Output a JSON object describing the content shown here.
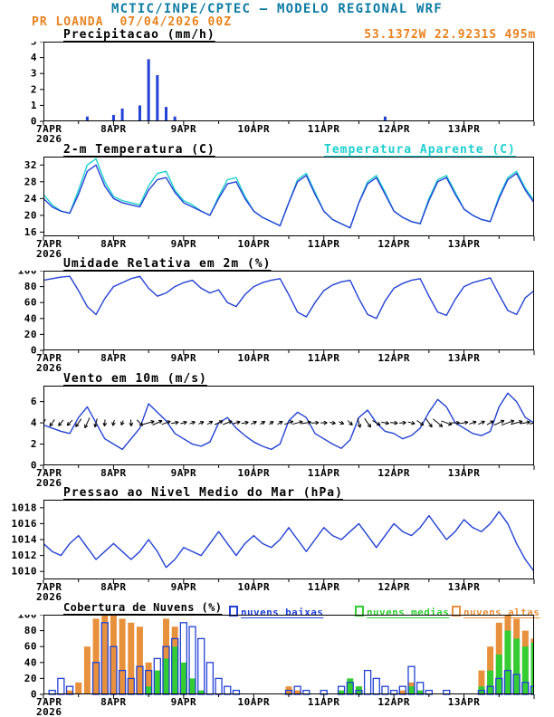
{
  "header": {
    "title": "MCTIC/INPE/CPTEC – MODELO REGIONAL WRF",
    "station": "PR LOANDA",
    "run_datetime": "07/04/2026 00Z",
    "location": "53.1372W 22.9231S 495m"
  },
  "colors": {
    "header_title": "#0e7ca3",
    "station_text": "#e8821e",
    "series_blue": "#2341d5",
    "apparent_cyan": "#1ecfcf",
    "clouds_low": "#2341d5",
    "clouds_mid": "#33cc33",
    "clouds_high": "#e8913d",
    "axis": "#000000"
  },
  "x_axis": {
    "day_labels": [
      "7APR",
      "8APR",
      "9APR",
      "10APR",
      "11APR",
      "12APR",
      "13APR"
    ],
    "year": "2026",
    "hours_total": 168,
    "step_hours": 3
  },
  "chart_data": [
    {
      "name": "precipitacao",
      "type": "bar",
      "title": "Precipitacao (mm/h)",
      "ylim": [
        0,
        5
      ],
      "yticks": [
        0,
        1,
        2,
        3,
        4,
        5
      ],
      "bar_color": "#2341d5",
      "values": [
        0,
        0,
        0,
        0,
        0,
        0.3,
        0,
        0,
        0.4,
        0.8,
        0,
        1.0,
        3.9,
        2.9,
        0.9,
        0.3,
        0,
        0,
        0,
        0,
        0,
        0,
        0,
        0,
        0,
        0,
        0,
        0,
        0,
        0,
        0,
        0,
        0,
        0,
        0,
        0,
        0,
        0,
        0,
        0.3,
        0,
        0,
        0,
        0,
        0,
        0,
        0,
        0,
        0,
        0,
        0,
        0,
        0,
        0,
        0,
        0,
        0
      ]
    },
    {
      "name": "temperatura",
      "type": "line",
      "title": "2-m Temperatura (C)",
      "right_label": "Temperatura Aparente (C)",
      "ylim": [
        15,
        34
      ],
      "yticks": [
        16,
        20,
        24,
        28,
        32
      ],
      "series": [
        {
          "name": "temperatura-aparente",
          "color": "#1ecfcf",
          "values": [
            25,
            22.5,
            21,
            20.5,
            26,
            32,
            33.5,
            28,
            24.5,
            23.5,
            23,
            22.5,
            27,
            30,
            30.5,
            26,
            23.5,
            22.5,
            21,
            20,
            24.5,
            28.5,
            29,
            24.5,
            21,
            19.5,
            18.5,
            17.5,
            23,
            28.5,
            30,
            25.5,
            21,
            19,
            18,
            17,
            23,
            28,
            29.5,
            25.5,
            21,
            19.5,
            18.5,
            18,
            24,
            28.5,
            29.5,
            25.5,
            21.5,
            20,
            19,
            18.5,
            24.5,
            29,
            30.5,
            26.5,
            23.5
          ]
        },
        {
          "name": "temperatura-2m",
          "color": "#2341d5",
          "values": [
            24,
            22,
            21,
            20.5,
            25,
            30.5,
            32,
            27,
            24,
            23,
            22.5,
            22,
            26,
            28.5,
            29,
            25.5,
            23,
            22,
            21,
            20,
            24,
            27.5,
            28,
            24,
            21,
            19.5,
            18.5,
            17.5,
            23,
            28,
            29.5,
            25,
            21,
            19,
            18,
            17,
            23,
            27.5,
            29,
            25,
            21,
            19.5,
            18.5,
            18,
            23.5,
            28,
            29,
            25,
            21.5,
            20,
            19,
            18.5,
            24,
            28.5,
            30,
            26,
            23
          ]
        }
      ]
    },
    {
      "name": "umidade",
      "type": "line",
      "title": "Umidade Relativa em 2m (%)",
      "ylim": [
        0,
        100
      ],
      "yticks": [
        0,
        20,
        40,
        60,
        80,
        100
      ],
      "series": [
        {
          "name": "umidade-relativa",
          "color": "#2341d5",
          "values": [
            88,
            90,
            92,
            93,
            75,
            55,
            45,
            65,
            80,
            85,
            90,
            93,
            78,
            68,
            72,
            80,
            85,
            88,
            78,
            72,
            76,
            60,
            55,
            70,
            80,
            85,
            88,
            90,
            70,
            48,
            42,
            60,
            75,
            82,
            86,
            88,
            65,
            45,
            40,
            62,
            78,
            84,
            88,
            90,
            68,
            48,
            44,
            64,
            80,
            85,
            88,
            91,
            70,
            50,
            45,
            66,
            75
          ]
        }
      ]
    },
    {
      "name": "vento",
      "type": "line",
      "title": "Vento em 10m (m/s)",
      "ylim": [
        0,
        7.5
      ],
      "yticks": [
        0,
        2,
        4,
        6
      ],
      "series": [
        {
          "name": "vento-velocidade",
          "color": "#2341d5",
          "values": [
            3.8,
            3.5,
            3.2,
            3.0,
            4.5,
            5.5,
            4.0,
            2.5,
            2.0,
            1.5,
            2.5,
            3.5,
            5.8,
            5.0,
            4.2,
            3.0,
            2.5,
            2.0,
            1.8,
            2.2,
            4.0,
            4.5,
            3.5,
            2.8,
            2.2,
            1.8,
            1.5,
            2.0,
            4.2,
            5.0,
            4.5,
            3.0,
            2.5,
            2.0,
            1.6,
            2.4,
            4.5,
            5.2,
            4.0,
            3.2,
            3.0,
            2.5,
            2.8,
            3.5,
            5.0,
            6.2,
            5.5,
            4.0,
            3.5,
            3.0,
            2.8,
            3.2,
            5.5,
            6.8,
            6.0,
            4.5,
            4.0
          ]
        }
      ],
      "barbs": {
        "y": 4,
        "color": "#000000",
        "angles_deg": [
          -120,
          -125,
          -130,
          -135,
          -125,
          -115,
          -105,
          -95,
          -105,
          -115,
          -85,
          -45,
          15,
          25,
          20,
          10,
          15,
          20,
          25,
          30,
          25,
          20,
          15,
          10,
          25,
          30,
          35,
          30,
          20,
          15,
          10,
          5,
          0,
          -10,
          -25,
          -45,
          -75,
          -55,
          -30,
          -10,
          -5,
          5,
          -15,
          -35,
          -55,
          -40,
          -20,
          0,
          10,
          20,
          25,
          30,
          25,
          20,
          15,
          10,
          15
        ]
      }
    },
    {
      "name": "pressao",
      "type": "line",
      "title": "Pressao ao Nivel Medio do Mar (hPa)",
      "ylim": [
        1009,
        1019
      ],
      "yticks": [
        1010,
        1012,
        1014,
        1016,
        1018
      ],
      "series": [
        {
          "name": "pressao-nivel-mar",
          "color": "#2341d5",
          "values": [
            1013.5,
            1012.5,
            1012,
            1013.5,
            1014.5,
            1013,
            1011.5,
            1012.5,
            1013.5,
            1012.5,
            1011.5,
            1012.5,
            1014,
            1012.5,
            1010.5,
            1011.5,
            1013,
            1012.5,
            1012,
            1013.5,
            1015,
            1013.5,
            1012,
            1013.5,
            1014.5,
            1013.5,
            1013,
            1014,
            1015.5,
            1014,
            1012.5,
            1014,
            1015.5,
            1014.5,
            1014,
            1015,
            1016,
            1014.5,
            1013,
            1014.5,
            1016,
            1015,
            1014.5,
            1015.5,
            1017,
            1015.5,
            1014,
            1015,
            1016.5,
            1015.5,
            1015,
            1016,
            1017.5,
            1016,
            1013.5,
            1011.5,
            1010
          ]
        }
      ]
    },
    {
      "name": "nuvens",
      "type": "multibar",
      "title": "Cobertura de Nuvens (%)",
      "ylim": [
        0,
        100
      ],
      "yticks": [
        0,
        20,
        40,
        60,
        80,
        100
      ],
      "legend": [
        {
          "label": "nuvens baixas",
          "color": "#2341d5"
        },
        {
          "label": "nuvens medias",
          "color": "#33cc33"
        },
        {
          "label": "nuvens altas",
          "color": "#e8913d"
        }
      ],
      "series": [
        {
          "name": "nuvens-altas",
          "color": "#e8913d",
          "style": "fill",
          "values": [
            0,
            0,
            0,
            5,
            15,
            60,
            95,
            100,
            100,
            95,
            90,
            85,
            40,
            10,
            95,
            85,
            20,
            5,
            0,
            0,
            0,
            0,
            0,
            0,
            0,
            0,
            0,
            0,
            10,
            5,
            0,
            0,
            0,
            0,
            0,
            5,
            10,
            0,
            0,
            0,
            0,
            5,
            15,
            5,
            0,
            0,
            0,
            0,
            0,
            0,
            30,
            60,
            90,
            100,
            95,
            80,
            70
          ]
        },
        {
          "name": "nuvens-medias",
          "color": "#33cc33",
          "style": "fill",
          "values": [
            0,
            0,
            0,
            0,
            0,
            0,
            0,
            0,
            0,
            0,
            0,
            0,
            10,
            30,
            45,
            60,
            40,
            20,
            5,
            0,
            0,
            0,
            0,
            0,
            0,
            0,
            0,
            0,
            0,
            0,
            0,
            0,
            0,
            0,
            5,
            20,
            10,
            0,
            0,
            0,
            0,
            0,
            10,
            5,
            0,
            0,
            0,
            0,
            0,
            0,
            10,
            30,
            50,
            80,
            70,
            60,
            65
          ]
        },
        {
          "name": "nuvens-baixas",
          "color": "#2341d5",
          "style": "outline",
          "values": [
            0,
            5,
            20,
            10,
            0,
            0,
            40,
            90,
            60,
            30,
            20,
            35,
            30,
            45,
            60,
            70,
            90,
            85,
            70,
            40,
            20,
            10,
            5,
            0,
            0,
            0,
            0,
            0,
            5,
            10,
            5,
            0,
            5,
            0,
            10,
            15,
            5,
            30,
            20,
            10,
            5,
            10,
            35,
            15,
            5,
            0,
            5,
            0,
            0,
            0,
            5,
            10,
            20,
            30,
            25,
            15,
            10
          ]
        }
      ]
    }
  ]
}
